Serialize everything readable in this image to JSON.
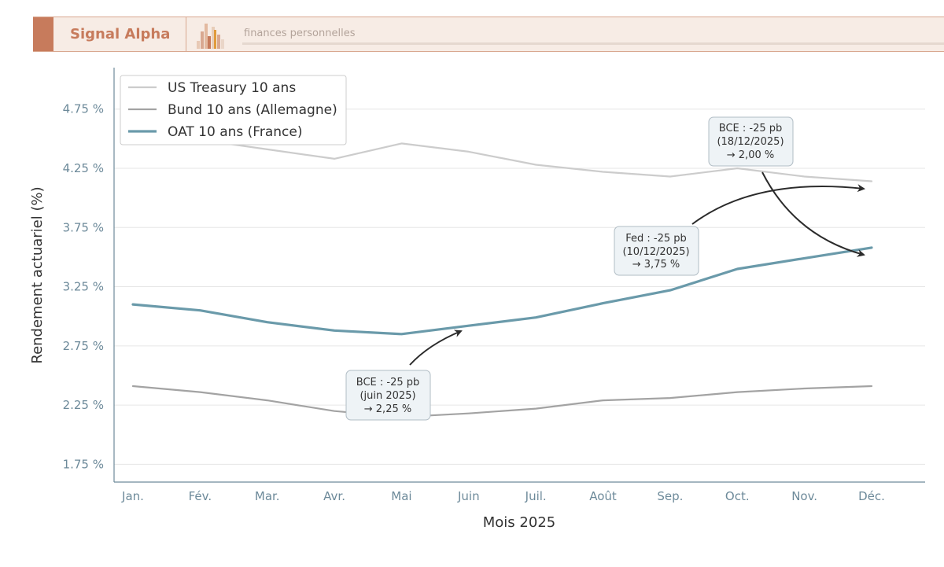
{
  "header": {
    "brand": "Signal Alpha",
    "tagline": "finances personnelles",
    "accent_color": "#c77b5c"
  },
  "chart_data": {
    "type": "line",
    "xlabel": "Mois 2025",
    "ylabel": "Rendement actuariel (%)",
    "categories": [
      "Jan.",
      "Fév.",
      "Mar.",
      "Avr.",
      "Mai",
      "Juin",
      "Juil.",
      "Août",
      "Sep.",
      "Oct.",
      "Nov.",
      "Déc."
    ],
    "ylim": [
      1.6,
      5.1
    ],
    "yticks": [
      1.75,
      2.25,
      2.75,
      3.25,
      3.75,
      4.25,
      4.75
    ],
    "ytick_labels": [
      "1.75 %",
      "2.25 %",
      "2.75 %",
      "3.25 %",
      "3.75 %",
      "4.25 %",
      "4.75 %"
    ],
    "grid": "horizontal",
    "legend_position": "top-left",
    "series": [
      {
        "name": "US Treasury 10 ans",
        "color": "#cccccc",
        "width": 2.2,
        "values": [
          4.51,
          4.49,
          4.41,
          4.33,
          4.46,
          4.39,
          4.28,
          4.22,
          4.18,
          4.25,
          4.18,
          4.14
        ]
      },
      {
        "name": "Bund 10 ans (Allemagne)",
        "color": "#a3a3a3",
        "width": 2.2,
        "values": [
          2.41,
          2.36,
          2.29,
          2.2,
          2.15,
          2.18,
          2.22,
          2.29,
          2.31,
          2.36,
          2.39,
          2.41
        ]
      },
      {
        "name": "OAT 10 ans (France)",
        "color": "#6a9aaa",
        "width": 3.2,
        "values": [
          3.1,
          3.05,
          2.95,
          2.88,
          2.85,
          2.92,
          2.99,
          3.11,
          3.22,
          3.4,
          3.49,
          3.58
        ]
      }
    ],
    "annotations": [
      {
        "lines": [
          "BCE : -25 pb",
          "(juin 2025)",
          "→ 2,25 %"
        ],
        "target_month": 5,
        "target_value": 2.92
      },
      {
        "lines": [
          "Fed : -25 pb",
          "(10/12/2025)",
          "→ 3,75 %"
        ],
        "target_month": 11,
        "target_value": 4.14
      },
      {
        "lines": [
          "BCE : -25 pb",
          "(18/12/2025)",
          "→ 2,00 %"
        ],
        "target_month": 11,
        "target_value": 3.58
      }
    ]
  }
}
